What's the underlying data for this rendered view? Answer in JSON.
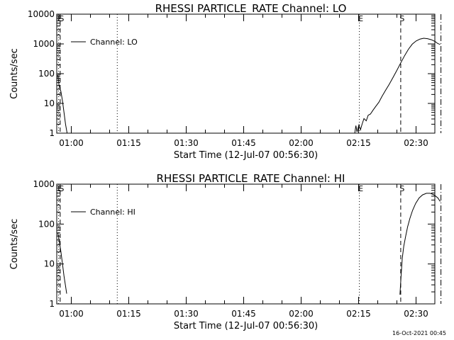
{
  "footer_timestamp": "16-Oct-2021 00:45",
  "chart_data": [
    {
      "type": "line",
      "title": "RHESSI PARTICLE_RATE Channel: LO",
      "xlabel": "Start Time (12-Jul-07 00:56:30)",
      "ylabel": "Counts/sec",
      "yscale": "log",
      "ylim": [
        1,
        10000
      ],
      "xlim_minutes": [
        0,
        100
      ],
      "x_tick_labels": [
        "01:00",
        "01:15",
        "01:30",
        "01:45",
        "02:00",
        "02:15",
        "02:30"
      ],
      "y_tick_labels": [
        "1",
        "10",
        "100",
        "1000",
        "10000"
      ],
      "legend": "Channel: LO",
      "series": [
        {
          "name": "Channel: LO",
          "segments": [
            [
              [
                0.0,
                90
              ],
              [
                0.3,
                40
              ],
              [
                0.8,
                25
              ],
              [
                1.2,
                12
              ],
              [
                1.6,
                5
              ],
              [
                2.0,
                2
              ],
              [
                2.4,
                1
              ]
            ],
            [
              [
                77.5,
                1
              ],
              [
                77.8,
                1.8
              ],
              [
                78.1,
                1.1
              ],
              [
                78.6,
                1.9
              ],
              [
                79.0,
                1.3
              ],
              [
                79.4,
                2.0
              ],
              [
                79.9,
                3.1
              ],
              [
                80.5,
                2.6
              ],
              [
                81.0,
                4.0
              ],
              [
                81.6,
                4.4
              ],
              [
                82.3,
                6.0
              ],
              [
                83.0,
                8.0
              ],
              [
                83.8,
                11
              ],
              [
                84.6,
                17
              ],
              [
                85.5,
                27
              ],
              [
                86.5,
                44
              ],
              [
                87.5,
                75
              ],
              [
                88.5,
                130
              ],
              [
                89.5,
                230
              ],
              [
                90.5,
                400
              ],
              [
                91.5,
                660
              ],
              [
                92.5,
                980
              ],
              [
                93.5,
                1250
              ],
              [
                94.5,
                1450
              ],
              [
                95.5,
                1550
              ],
              [
                96.5,
                1500
              ],
              [
                97.5,
                1380
              ],
              [
                98.5,
                1200
              ],
              [
                99.2,
                1020
              ],
              [
                99.8,
                960
              ]
            ]
          ]
        }
      ],
      "markers": [
        {
          "label": "E",
          "x": 0.0,
          "style": "dotted"
        },
        {
          "label": "S",
          "x": 0.6,
          "style": "dashed"
        },
        {
          "label": "",
          "x": 15.5,
          "style": "dotted"
        },
        {
          "label": "E",
          "x": 78.7,
          "style": "dotted"
        },
        {
          "label": "S",
          "x": 89.5,
          "style": "dashed"
        },
        {
          "label": "",
          "x": 100.0,
          "style": "dashdot"
        }
      ]
    },
    {
      "type": "line",
      "title": "RHESSI PARTICLE_RATE Channel: HI",
      "xlabel": "Start Time (12-Jul-07 00:56:30)",
      "ylabel": "Counts/sec",
      "yscale": "log",
      "ylim": [
        1,
        1000
      ],
      "xlim_minutes": [
        0,
        100
      ],
      "x_tick_labels": [
        "01:00",
        "01:15",
        "01:30",
        "01:45",
        "02:00",
        "02:15",
        "02:30"
      ],
      "y_tick_labels": [
        "1",
        "10",
        "100",
        "1000"
      ],
      "legend": "Channel: HI",
      "series": [
        {
          "name": "Channel: HI",
          "segments": [
            [
              [
                0.0,
                60
              ],
              [
                0.4,
                35
              ],
              [
                0.8,
                20
              ],
              [
                1.2,
                10
              ],
              [
                1.6,
                5
              ],
              [
                2.0,
                2.8
              ],
              [
                2.3,
                1.8
              ]
            ],
            [
              [
                89.3,
                1.7
              ],
              [
                89.6,
                5
              ],
              [
                89.9,
                14
              ],
              [
                90.3,
                28
              ],
              [
                90.8,
                50
              ],
              [
                91.3,
                85
              ],
              [
                91.9,
                140
              ],
              [
                92.6,
                220
              ],
              [
                93.4,
                330
              ],
              [
                94.3,
                450
              ],
              [
                95.2,
                540
              ],
              [
                96.2,
                590
              ],
              [
                97.2,
                590
              ],
              [
                98.2,
                540
              ],
              [
                99.2,
                450
              ],
              [
                99.8,
                370
              ]
            ]
          ]
        }
      ],
      "markers": [
        {
          "label": "E",
          "x": 0.0,
          "style": "dotted"
        },
        {
          "label": "S",
          "x": 0.6,
          "style": "dashed"
        },
        {
          "label": "",
          "x": 15.5,
          "style": "dotted"
        },
        {
          "label": "E",
          "x": 78.7,
          "style": "dotted"
        },
        {
          "label": "S",
          "x": 89.5,
          "style": "dashed"
        },
        {
          "label": "",
          "x": 100.0,
          "style": "dashdot"
        }
      ]
    }
  ]
}
